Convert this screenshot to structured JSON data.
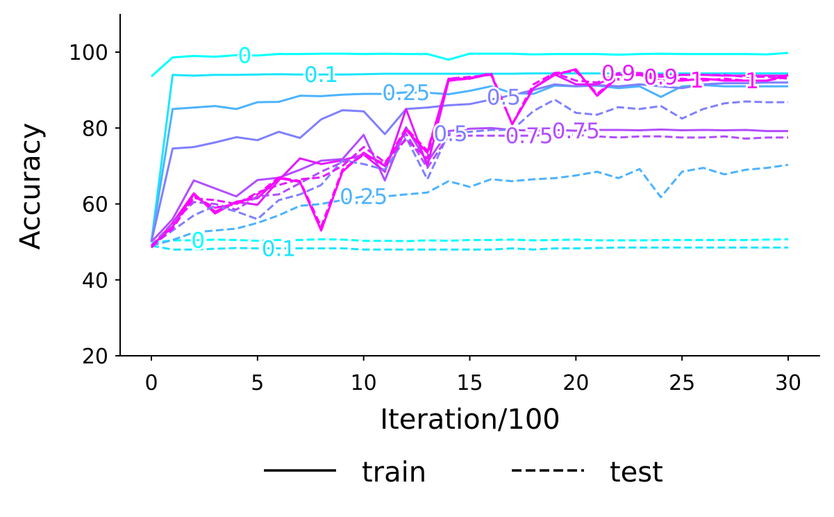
{
  "chart_data": {
    "type": "line",
    "title": "",
    "xlabel": "Iteration/100",
    "ylabel": "Accuracy",
    "xlim": [
      -1.5,
      31.5
    ],
    "ylim": [
      20,
      110
    ],
    "xticks": [
      0,
      5,
      10,
      15,
      20,
      25,
      30
    ],
    "yticks": [
      20,
      40,
      60,
      80,
      100
    ],
    "grid": false,
    "spines": "left-bottom",
    "legend": {
      "position": "below-center",
      "entries": [
        {
          "label": "train",
          "style": "solid"
        },
        {
          "label": "test",
          "style": "dashed"
        }
      ]
    },
    "series": [
      {
        "name": "0",
        "split": "train",
        "color": "#00ffff",
        "x": [
          0,
          1,
          2,
          3,
          4,
          5,
          6,
          7,
          8,
          9,
          10,
          11,
          12,
          13,
          14,
          15,
          16,
          17,
          18,
          19,
          20,
          21,
          22,
          23,
          24,
          25,
          26,
          27,
          28,
          29,
          30
        ],
        "y": [
          93.6,
          98.6,
          99.0,
          98.8,
          99.2,
          99.1,
          99.5,
          99.5,
          99.6,
          99.6,
          99.5,
          99.6,
          99.5,
          99.5,
          98.0,
          99.6,
          99.6,
          99.6,
          99.4,
          99.5,
          99.5,
          99.5,
          99.3,
          99.5,
          99.6,
          99.5,
          99.5,
          99.5,
          99.5,
          99.4,
          99.8
        ],
        "inline_label": {
          "text": "0",
          "x": 4.4
        }
      },
      {
        "name": "0.1",
        "split": "train",
        "color": "#1ae5ff",
        "x": [
          0,
          1,
          2,
          3,
          4,
          5,
          6,
          7,
          8,
          9,
          10,
          11,
          12,
          13,
          14,
          15,
          16,
          17,
          18,
          19,
          20,
          21,
          22,
          23,
          24,
          25,
          26,
          27,
          28,
          29,
          30
        ],
        "y": [
          50.0,
          94.0,
          93.8,
          94.0,
          94.0,
          94.1,
          94.2,
          94.1,
          94.1,
          94.1,
          94.2,
          94.3,
          94.3,
          94.3,
          94.3,
          94.3,
          94.3,
          94.3,
          94.4,
          94.4,
          94.4,
          94.4,
          94.4,
          94.4,
          94.4,
          94.4,
          94.4,
          94.4,
          94.4,
          94.4,
          94.4
        ],
        "inline_label": {
          "text": "0.1",
          "x": 8.0
        }
      },
      {
        "name": "0.25",
        "split": "train",
        "color": "#4cb3ff",
        "x": [
          0,
          1,
          2,
          3,
          4,
          5,
          6,
          7,
          8,
          9,
          10,
          11,
          12,
          13,
          14,
          15,
          16,
          17,
          18,
          19,
          20,
          21,
          22,
          23,
          24,
          25,
          26,
          27,
          28,
          29,
          30
        ],
        "y": [
          50.0,
          85.0,
          85.4,
          85.8,
          85.0,
          86.8,
          86.9,
          88.5,
          88.4,
          88.8,
          89.0,
          89.0,
          89.4,
          89.3,
          88.9,
          89.8,
          91.0,
          89.2,
          89.0,
          91.2,
          91.0,
          91.2,
          90.5,
          91.0,
          88.2,
          91.0,
          91.3,
          91.0,
          91.0,
          91.0,
          91.0
        ],
        "inline_label": {
          "text": "0.25",
          "x": 12.0
        }
      },
      {
        "name": "0.5",
        "split": "train",
        "color": "#7f80ff",
        "x": [
          0,
          1,
          2,
          3,
          4,
          5,
          6,
          7,
          8,
          9,
          10,
          11,
          12,
          13,
          14,
          15,
          16,
          17,
          18,
          19,
          20,
          21,
          22,
          23,
          24,
          25,
          26,
          27,
          28,
          29,
          30
        ],
        "y": [
          50.0,
          74.6,
          75.0,
          76.2,
          77.6,
          76.8,
          79.0,
          77.4,
          82.3,
          84.7,
          84.4,
          78.4,
          85.0,
          85.4,
          86.0,
          86.3,
          87.5,
          88.7,
          90.0,
          91.5,
          91.0,
          91.3,
          91.0,
          91.5,
          91.0,
          90.5,
          91.5,
          91.8,
          91.8,
          92.0,
          92.0
        ],
        "inline_label": {
          "text": "0.5",
          "x": 16.6
        }
      },
      {
        "name": "0.75",
        "split": "train",
        "color": "#b24dff",
        "x": [
          0,
          1,
          2,
          3,
          4,
          5,
          6,
          7,
          8,
          9,
          10,
          11,
          12,
          13,
          14,
          15,
          16,
          17,
          18,
          19,
          20,
          21,
          22,
          23,
          24,
          25,
          26,
          27,
          28,
          29,
          30
        ],
        "y": [
          50.0,
          56.0,
          66.2,
          64.1,
          62.0,
          66.3,
          66.9,
          69.0,
          71.4,
          71.8,
          78.2,
          66.2,
          80.2,
          71.0,
          79.2,
          79.8,
          80.0,
          79.5,
          79.3,
          79.5,
          79.3,
          79.5,
          79.5,
          79.4,
          79.6,
          79.4,
          79.5,
          79.4,
          79.5,
          79.2,
          79.2
        ],
        "inline_label": {
          "text": "0.75",
          "x": 20.0
        }
      },
      {
        "name": "0.9",
        "split": "train",
        "color": "#e519ff",
        "x": [
          0,
          1,
          2,
          3,
          4,
          5,
          6,
          7,
          8,
          9,
          10,
          11,
          12,
          13,
          14,
          15,
          16,
          17,
          18,
          19,
          20,
          21,
          22,
          23,
          24,
          25,
          26,
          27,
          28,
          29,
          30
        ],
        "y": [
          49.0,
          54.0,
          62.5,
          58.0,
          60.5,
          59.8,
          66.2,
          72.0,
          70.5,
          71.5,
          73.0,
          68.5,
          85.0,
          70.0,
          92.4,
          93.2,
          94.2,
          81.0,
          90.5,
          94.1,
          91.5,
          91.5,
          94.0,
          94.0,
          93.5,
          94.0,
          94.0,
          93.8,
          93.8,
          93.8,
          93.8
        ],
        "inline_label": {
          "text": "0.9",
          "x": 24.0
        }
      },
      {
        "name": "1",
        "split": "train",
        "color": "#ff00ff",
        "x": [
          0,
          1,
          2,
          3,
          4,
          5,
          6,
          7,
          8,
          9,
          10,
          11,
          12,
          13,
          14,
          15,
          16,
          17,
          18,
          19,
          20,
          21,
          22,
          23,
          24,
          25,
          26,
          27,
          28,
          29,
          30
        ],
        "y": [
          48.5,
          55.0,
          62.8,
          57.5,
          60.6,
          61.5,
          66.8,
          65.8,
          53.0,
          68.5,
          73.5,
          70.0,
          79.5,
          73.5,
          93.0,
          93.0,
          94.2,
          81.0,
          90.5,
          94.0,
          95.5,
          88.5,
          93.5,
          94.5,
          92.5,
          92.5,
          93.0,
          92.5,
          92.5,
          92.5,
          94.0
        ],
        "inline_label": {
          "text": "1",
          "x": 28.3
        }
      },
      {
        "name": "0",
        "split": "test",
        "color": "#00ffff",
        "x": [
          0,
          1,
          2,
          3,
          4,
          5,
          6,
          7,
          8,
          9,
          10,
          11,
          12,
          13,
          14,
          15,
          16,
          17,
          18,
          19,
          20,
          21,
          22,
          23,
          24,
          25,
          26,
          27,
          28,
          29,
          30
        ],
        "y": [
          49.8,
          50.4,
          50.4,
          50.6,
          50.5,
          50.3,
          50.5,
          50.5,
          50.7,
          50.6,
          50.3,
          50.3,
          50.2,
          50.4,
          50.3,
          50.5,
          50.5,
          50.6,
          50.4,
          50.5,
          50.6,
          50.4,
          50.4,
          50.4,
          50.5,
          50.5,
          50.5,
          50.5,
          50.5,
          50.6,
          50.7
        ],
        "inline_label": {
          "text": "0",
          "x": 2.2
        }
      },
      {
        "name": "0.1",
        "split": "test",
        "color": "#1ae5ff",
        "x": [
          0,
          1,
          2,
          3,
          4,
          5,
          6,
          7,
          8,
          9,
          10,
          11,
          12,
          13,
          14,
          15,
          16,
          17,
          18,
          19,
          20,
          21,
          22,
          23,
          24,
          25,
          26,
          27,
          28,
          29,
          30
        ],
        "y": [
          49.0,
          48.0,
          48.0,
          48.2,
          48.4,
          48.3,
          48.3,
          48.3,
          48.3,
          48.3,
          48.0,
          48.0,
          48.0,
          48.0,
          48.0,
          48.0,
          48.0,
          48.3,
          48.0,
          48.3,
          48.3,
          48.4,
          48.5,
          48.5,
          48.5,
          48.5,
          48.5,
          48.5,
          48.5,
          48.5,
          48.5
        ],
        "inline_label": {
          "text": "0.1",
          "x": 6.0
        }
      },
      {
        "name": "0.25",
        "split": "test",
        "color": "#4cb3ff",
        "x": [
          0,
          1,
          2,
          3,
          4,
          5,
          6,
          7,
          8,
          9,
          10,
          11,
          12,
          13,
          14,
          15,
          16,
          17,
          18,
          19,
          20,
          21,
          22,
          23,
          24,
          25,
          26,
          27,
          28,
          29,
          30
        ],
        "y": [
          49.0,
          50.5,
          52.5,
          53.0,
          53.5,
          55.0,
          57.0,
          59.5,
          60.0,
          61.0,
          62.0,
          62.0,
          62.5,
          63.0,
          66.0,
          64.5,
          66.5,
          66.0,
          66.5,
          66.8,
          67.5,
          68.5,
          66.8,
          69.2,
          61.8,
          68.5,
          69.5,
          67.8,
          69.0,
          69.5,
          70.3
        ],
        "inline_label": {
          "text": "0.25",
          "x": 10.0
        }
      },
      {
        "name": "0.5",
        "split": "test",
        "color": "#7f80ff",
        "x": [
          0,
          1,
          2,
          3,
          4,
          5,
          6,
          7,
          8,
          9,
          10,
          11,
          12,
          13,
          14,
          15,
          16,
          17,
          18,
          19,
          20,
          21,
          22,
          23,
          24,
          25,
          26,
          27,
          28,
          29,
          30
        ],
        "y": [
          49.0,
          53.0,
          57.0,
          59.5,
          58.0,
          56.0,
          61.0,
          62.5,
          65.0,
          71.5,
          70.5,
          69.0,
          77.5,
          66.5,
          78.5,
          79.0,
          79.5,
          79.5,
          84.5,
          87.5,
          84.0,
          83.5,
          85.5,
          85.0,
          85.8,
          82.5,
          85.0,
          86.5,
          87.0,
          86.8,
          86.8
        ],
        "inline_label": {
          "text": "0.5",
          "x": 14.1
        }
      },
      {
        "name": "0.75",
        "split": "test",
        "color": "#b24dff",
        "x": [
          0,
          1,
          2,
          3,
          4,
          5,
          6,
          7,
          8,
          9,
          10,
          11,
          12,
          13,
          14,
          15,
          16,
          17,
          18,
          19,
          20,
          21,
          22,
          23,
          24,
          25,
          26,
          27,
          28,
          29,
          30
        ],
        "y": [
          49.0,
          55.0,
          60.5,
          60.0,
          58.5,
          62.0,
          62.5,
          65.5,
          68.5,
          71.0,
          73.0,
          70.5,
          78.5,
          69.5,
          78.0,
          78.0,
          78.0,
          78.0,
          78.0,
          78.2,
          78.2,
          77.8,
          77.5,
          77.8,
          77.8,
          77.5,
          77.5,
          77.8,
          77.2,
          77.5,
          77.5
        ],
        "inline_label": {
          "text": "0.75",
          "x": 17.8
        }
      },
      {
        "name": "0.9",
        "split": "test",
        "color": "#e519ff",
        "x": [
          0,
          1,
          2,
          3,
          4,
          5,
          6,
          7,
          8,
          9,
          10,
          11,
          12,
          13,
          14,
          15,
          16,
          17,
          18,
          19,
          20,
          21,
          22,
          23,
          24,
          25,
          26,
          27,
          28,
          29,
          30
        ],
        "y": [
          48.5,
          54.0,
          61.5,
          61.0,
          60.0,
          63.0,
          65.0,
          66.5,
          67.0,
          70.0,
          75.0,
          71.0,
          77.0,
          72.0,
          93.0,
          93.5,
          94.0,
          81.0,
          90.5,
          94.5,
          92.5,
          92.0,
          94.5,
          94.5,
          94.0,
          94.0,
          94.0,
          94.0,
          93.5,
          93.5,
          93.0
        ],
        "inline_label": {
          "text": "0.9",
          "x": 22.0
        }
      },
      {
        "name": "1",
        "split": "test",
        "color": "#ff00ff",
        "x": [
          0,
          1,
          2,
          3,
          4,
          5,
          6,
          7,
          8,
          9,
          10,
          11,
          12,
          13,
          14,
          15,
          16,
          17,
          18,
          19,
          20,
          21,
          22,
          23,
          24,
          25,
          26,
          27,
          28,
          29,
          30
        ],
        "y": [
          49.0,
          53.5,
          62.0,
          59.0,
          60.0,
          62.5,
          67.0,
          66.0,
          54.0,
          69.0,
          73.0,
          70.5,
          80.0,
          74.0,
          92.5,
          93.0,
          94.5,
          81.0,
          91.5,
          94.5,
          95.0,
          89.0,
          93.5,
          94.0,
          92.5,
          93.0,
          92.5,
          93.0,
          92.5,
          92.5,
          93.5
        ],
        "inline_label": {
          "text": "1",
          "x": 25.7
        }
      }
    ]
  }
}
